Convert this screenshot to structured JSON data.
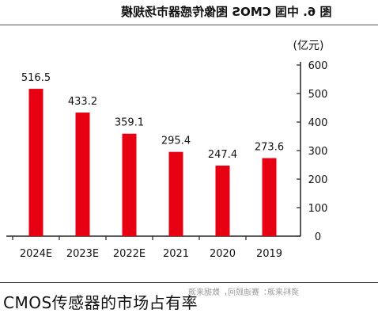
{
  "figure": {
    "title": "图 6. 中国 CMOS 图像传感器市场规模",
    "unit": "(亿元)",
    "source": "资料来源：赛迪顾问，数据来源"
  },
  "caption": "CMOS传感器的市场占有率",
  "colors": {
    "bar": "#e60012",
    "axis": "#222222",
    "text": "#111111"
  },
  "chart_data": {
    "type": "bar",
    "title": "图 6. 中国 CMOS 图像传感器市场规模",
    "ylabel": "(亿元)",
    "xlabel": "",
    "categories": [
      "2024E",
      "2023E",
      "2022E",
      "2021",
      "2020",
      "2019"
    ],
    "values": [
      516.5,
      433.2,
      359.1,
      295.4,
      247.4,
      273.6
    ],
    "value_labels": [
      "516.5",
      "433.2",
      "359.1",
      "295.4",
      "247.4",
      "273.6"
    ],
    "ylim": [
      0,
      600
    ],
    "yticks": [
      0,
      100,
      200,
      300,
      400,
      500,
      600
    ],
    "grid": false,
    "legend": "none",
    "orientation": "mirrored"
  }
}
